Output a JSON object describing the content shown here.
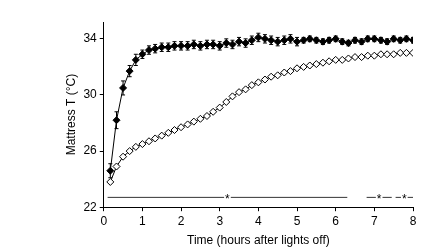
{
  "chart_data": {
    "type": "line",
    "x_label": "Time (hours after lights off)",
    "y_label": "Mattress T (°C)",
    "x": [
      0.17,
      0.33,
      0.5,
      0.67,
      0.83,
      1,
      1.17,
      1.33,
      1.5,
      1.67,
      1.83,
      2,
      2.17,
      2.33,
      2.5,
      2.67,
      2.83,
      3,
      3.17,
      3.33,
      3.5,
      3.67,
      3.83,
      4,
      4.17,
      4.33,
      4.5,
      4.67,
      4.83,
      5,
      5.17,
      5.33,
      5.5,
      5.67,
      5.83,
      6,
      6.17,
      6.33,
      6.5,
      6.67,
      6.83,
      7,
      7.17,
      7.33,
      7.5,
      7.67,
      7.83,
      8
    ],
    "series": [
      {
        "color": "#000000",
        "marker": "diamond",
        "line_style": "solid",
        "values": [
          24.6,
          28.2,
          30.5,
          31.7,
          32.5,
          32.9,
          33.2,
          33.3,
          33.4,
          33.4,
          33.5,
          33.5,
          33.5,
          33.6,
          33.5,
          33.6,
          33.6,
          33.5,
          33.7,
          33.6,
          33.8,
          33.7,
          33.9,
          34.1,
          34.0,
          33.9,
          33.8,
          33.9,
          34.0,
          33.8,
          33.9,
          34.0,
          33.9,
          33.8,
          33.9,
          34.0,
          33.8,
          33.7,
          33.9,
          33.8,
          34.0,
          34.0,
          33.9,
          33.8,
          34.0,
          33.9,
          34.0,
          33.9
        ],
        "error": [
          0.5,
          0.6,
          0.5,
          0.4,
          0.4,
          0.3,
          0.3,
          0.3,
          0.3,
          0.3,
          0.3,
          0.3,
          0.3,
          0.3,
          0.3,
          0.3,
          0.3,
          0.3,
          0.3,
          0.3,
          0.3,
          0.3,
          0.3,
          0.3,
          0.3,
          0.3,
          0.3,
          0.3,
          0.3,
          0.3,
          0.2,
          0.2,
          0.2,
          0.2,
          0.2,
          0.2,
          0.2,
          0.2,
          0.2,
          0.2,
          0.2,
          0.2,
          0.2,
          0.2,
          0.2,
          0.2,
          0.2,
          0.2
        ]
      },
      {
        "color": "#000000",
        "marker": "diamond-open",
        "line_style": "solid",
        "values": [
          23.8,
          24.9,
          25.6,
          26.0,
          26.3,
          26.5,
          26.7,
          26.9,
          27.1,
          27.3,
          27.5,
          27.7,
          27.9,
          28.1,
          28.3,
          28.5,
          28.8,
          29.1,
          29.5,
          29.9,
          30.2,
          30.4,
          30.7,
          30.9,
          31.1,
          31.3,
          31.4,
          31.6,
          31.7,
          31.9,
          32.0,
          32.1,
          32.2,
          32.3,
          32.4,
          32.5,
          32.5,
          32.6,
          32.7,
          32.7,
          32.8,
          32.8,
          32.9,
          32.9,
          32.9,
          33.0,
          33.0,
          33.0
        ]
      }
    ],
    "xlim": [
      0,
      8
    ],
    "xticks": [
      0,
      1,
      2,
      3,
      4,
      5,
      6,
      7,
      8
    ],
    "ylim": [
      22,
      35.2
    ],
    "yticks": [
      22,
      26,
      30,
      34
    ],
    "grid": false,
    "annotations": [
      {
        "text": "*",
        "x_start": 0.1,
        "x_end": 6.3,
        "y": 22.7
      },
      {
        "text": "*",
        "x_start": 6.8,
        "x_end": 7.45,
        "y": 22.7
      },
      {
        "text": "*",
        "x_start": 7.55,
        "x_end": 8,
        "y": 22.7
      }
    ]
  }
}
